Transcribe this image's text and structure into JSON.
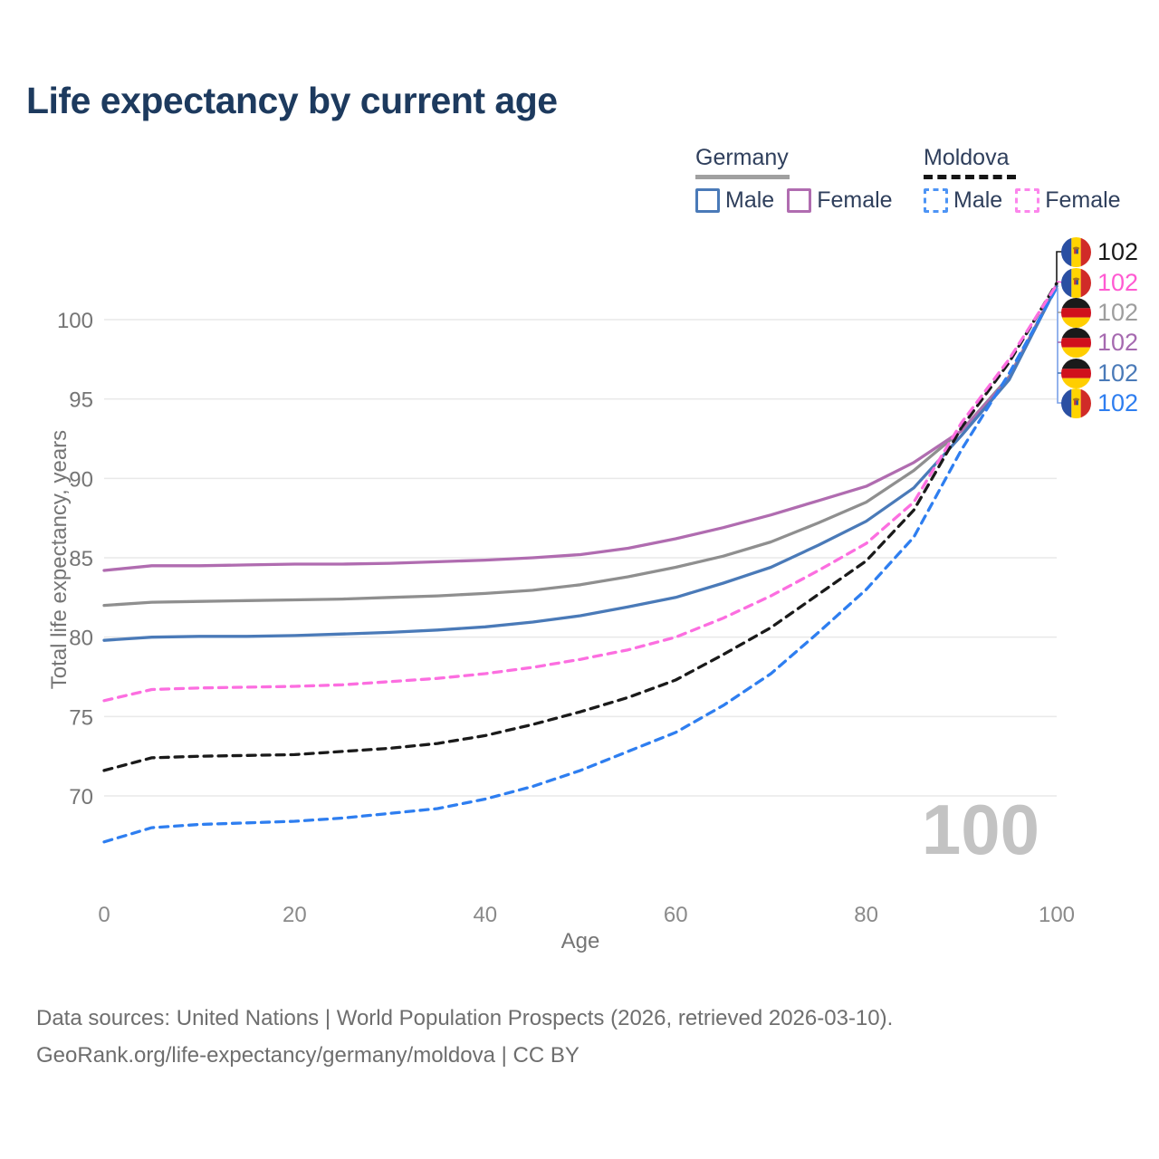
{
  "title": "Life expectancy by current age",
  "legend": {
    "groups": [
      {
        "label": "Germany",
        "line_style": "solid",
        "underline_color": "#a0a0a0",
        "items": [
          {
            "label": "Male",
            "color": "#4a7ab8"
          },
          {
            "label": "Female",
            "color": "#b06cb0"
          }
        ]
      },
      {
        "label": "Moldova",
        "line_style": "dashed",
        "underline_color": "#151515",
        "items": [
          {
            "label": "Male",
            "color": "#4d94f5"
          },
          {
            "label": "Female",
            "color": "#fc86ec"
          }
        ]
      }
    ]
  },
  "watermark_current_age": "100",
  "right_labels": [
    {
      "flag": "moldova",
      "series": "Moldova total",
      "value": "102",
      "color": "#1a1a1a"
    },
    {
      "flag": "moldova",
      "series": "Moldova female",
      "value": "102",
      "color": "#ff5ad2"
    },
    {
      "flag": "germany",
      "series": "Germany total",
      "value": "102",
      "color": "#9e9e9e"
    },
    {
      "flag": "germany",
      "series": "Germany female",
      "value": "102",
      "color": "#a66ab0"
    },
    {
      "flag": "germany",
      "series": "Germany male",
      "value": "102",
      "color": "#4a7ab8"
    },
    {
      "flag": "moldova",
      "series": "Moldova male",
      "value": "102",
      "color": "#2e7ef0"
    }
  ],
  "footer": {
    "line1": "Data sources: United Nations | World Population Prospects (2026, retrieved 2026-03-10).",
    "line2": "GeoRank.org/life-expectancy/germany/moldova | CC BY"
  },
  "chart_data": {
    "type": "line",
    "title": "Life expectancy by current age",
    "xlabel": "Age",
    "ylabel": "Total life expectancy, years",
    "xlim": [
      0,
      100
    ],
    "ylim": [
      66,
      103
    ],
    "xticks": [
      0,
      20,
      40,
      60,
      80,
      100
    ],
    "yticks": [
      70,
      75,
      80,
      85,
      90,
      95,
      100
    ],
    "grid": "horizontal-only",
    "legend_position": "top-right",
    "x": [
      0,
      5,
      10,
      15,
      20,
      25,
      30,
      35,
      40,
      45,
      50,
      55,
      60,
      65,
      70,
      75,
      80,
      85,
      90,
      95,
      100
    ],
    "series": [
      {
        "name": "Germany total",
        "color": "#8f8f8f",
        "dash": false,
        "values": [
          82.0,
          82.2,
          82.25,
          82.3,
          82.35,
          82.4,
          82.5,
          82.6,
          82.75,
          82.95,
          83.3,
          83.8,
          84.4,
          85.1,
          86.0,
          87.2,
          88.5,
          90.5,
          93.0,
          96.4,
          102.1
        ]
      },
      {
        "name": "Germany female",
        "color": "#b06cb0",
        "dash": false,
        "values": [
          84.2,
          84.5,
          84.5,
          84.55,
          84.6,
          84.6,
          84.65,
          84.75,
          84.85,
          85.0,
          85.2,
          85.6,
          86.2,
          86.9,
          87.7,
          88.6,
          89.5,
          91.0,
          93.0,
          96.3,
          102.2
        ]
      },
      {
        "name": "Germany male",
        "color": "#4a7ab8",
        "dash": false,
        "values": [
          79.8,
          80.0,
          80.05,
          80.05,
          80.1,
          80.2,
          80.3,
          80.45,
          80.65,
          80.95,
          81.35,
          81.9,
          82.5,
          83.4,
          84.4,
          85.8,
          87.3,
          89.4,
          92.7,
          96.2,
          102.1
        ]
      },
      {
        "name": "Moldova total",
        "color": "#1a1a1a",
        "dash": true,
        "values": [
          71.6,
          72.4,
          72.5,
          72.55,
          72.6,
          72.8,
          73.0,
          73.3,
          73.8,
          74.5,
          75.3,
          76.2,
          77.3,
          78.9,
          80.6,
          82.7,
          84.8,
          88.0,
          93.2,
          97.3,
          102.3
        ]
      },
      {
        "name": "Moldova male",
        "color": "#2e7ef0",
        "dash": true,
        "values": [
          67.1,
          68.0,
          68.2,
          68.3,
          68.4,
          68.6,
          68.9,
          69.2,
          69.8,
          70.6,
          71.6,
          72.8,
          74.0,
          75.7,
          77.7,
          80.3,
          83.0,
          86.3,
          91.8,
          96.6,
          102.0
        ]
      },
      {
        "name": "Moldova female",
        "color": "#fc6ee0",
        "dash": true,
        "values": [
          76.0,
          76.7,
          76.8,
          76.85,
          76.9,
          77.0,
          77.2,
          77.4,
          77.7,
          78.1,
          78.6,
          79.2,
          80.0,
          81.2,
          82.6,
          84.2,
          85.9,
          88.5,
          93.5,
          97.5,
          102.2
        ]
      }
    ]
  }
}
